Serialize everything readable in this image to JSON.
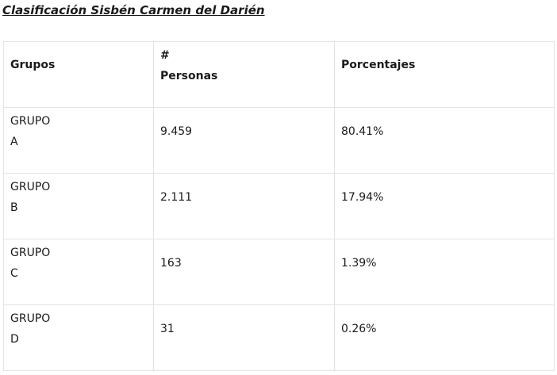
{
  "title": "Clasificación Sisbén Carmen del Darién",
  "table": {
    "headers": {
      "group": "Grupos",
      "persons_hash": "#",
      "persons_label": "Personas",
      "percent": "Porcentajes"
    },
    "rows": [
      {
        "group_word": "GRUPO",
        "group_letter": "A",
        "persons": "9.459",
        "percent": "80.41%"
      },
      {
        "group_word": "GRUPO",
        "group_letter": "B",
        "persons": "2.111",
        "percent": "17.94%"
      },
      {
        "group_word": "GRUPO",
        "group_letter": "C",
        "persons": "163",
        "percent": "1.39%"
      },
      {
        "group_word": "GRUPO",
        "group_letter": "D",
        "persons": "31",
        "percent": "0.26%"
      }
    ]
  }
}
